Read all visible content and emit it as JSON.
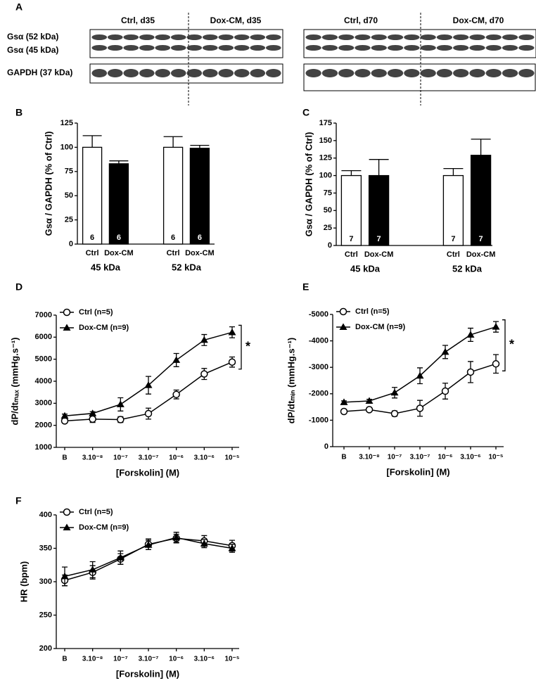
{
  "blot_panel": {
    "label": "A",
    "rows": [
      "Gsα (52 kDa)",
      "Gsα (45 kDa)",
      "GAPDH (37 kDa)"
    ],
    "groups": [
      "Ctrl, d35",
      "Dox-CM, d35",
      "Ctrl, d70",
      "Dox-CM, d70"
    ]
  },
  "chart_data": [
    {
      "type": "bar",
      "panel": "B",
      "ylabel": "Gsα / GAPDH (% of Ctrl)",
      "categories": [
        "45 kDa",
        "52 kDa"
      ],
      "series": [
        {
          "name": "Ctrl",
          "color": "#ffffff",
          "values": [
            100,
            100
          ],
          "errors": [
            12,
            11
          ],
          "n": [
            6,
            6
          ]
        },
        {
          "name": "Dox-CM",
          "color": "#000000",
          "values": [
            83,
            99
          ],
          "errors": [
            3,
            3
          ],
          "n": [
            6,
            6
          ]
        }
      ],
      "ylim": [
        0,
        125
      ],
      "yticks": [
        0,
        25,
        50,
        75,
        100,
        125
      ]
    },
    {
      "type": "bar",
      "panel": "C",
      "ylabel": "Gsα / GAPDH (% of Ctrl)",
      "categories": [
        "45 kDa",
        "52 kDa"
      ],
      "series": [
        {
          "name": "Ctrl",
          "color": "#ffffff",
          "values": [
            100,
            100
          ],
          "errors": [
            7,
            10
          ],
          "n": [
            7,
            7
          ]
        },
        {
          "name": "Dox-CM",
          "color": "#000000",
          "values": [
            100,
            129
          ],
          "errors": [
            23,
            23
          ],
          "n": [
            7,
            7
          ]
        }
      ],
      "ylim": [
        0,
        175
      ],
      "yticks": [
        0,
        25,
        50,
        75,
        100,
        125,
        150,
        175
      ]
    },
    {
      "type": "line",
      "panel": "D",
      "ylabel": "dP/dtₘₐₓ (mmHg.s⁻¹)",
      "xlabel": "[Forskolin] (M)",
      "categories": [
        "B",
        "3.10⁻⁸",
        "10⁻⁷",
        "3.10⁻⁷",
        "10⁻⁶",
        "3.10⁻⁶",
        "10⁻⁵"
      ],
      "series": [
        {
          "name": "Ctrl (n=5)",
          "color": "#000000",
          "marker": "circle",
          "values": [
            2200,
            2280,
            2260,
            2530,
            3400,
            4330,
            4870
          ],
          "errors": [
            100,
            150,
            130,
            250,
            200,
            250,
            230
          ]
        },
        {
          "name": "Dox-CM (n=9)",
          "color": "#000000",
          "marker": "triangle",
          "values": [
            2430,
            2540,
            2950,
            3820,
            4960,
            5870,
            6220
          ],
          "errors": [
            80,
            80,
            300,
            400,
            300,
            250,
            250
          ]
        }
      ],
      "ylim": [
        1000,
        7000
      ],
      "yticks": [
        1000,
        2000,
        3000,
        4000,
        5000,
        6000,
        7000
      ],
      "legend": "upper left",
      "significance": "*"
    },
    {
      "type": "line",
      "panel": "E",
      "ylabel": "dP/dtₘᵢₙ (mmHg.s⁻¹)",
      "xlabel": "[Forskolin] (M)",
      "categories": [
        "B",
        "3.10⁻⁸",
        "10⁻⁷",
        "3.10⁻⁷",
        "10⁻⁶",
        "3.10⁻⁶",
        "10⁻⁵"
      ],
      "series": [
        {
          "name": "Ctrl (n=5)",
          "color": "#000000",
          "marker": "circle",
          "values": [
            -1330,
            -1400,
            -1250,
            -1450,
            -2100,
            -2820,
            -3130
          ],
          "errors": [
            50,
            80,
            100,
            300,
            300,
            400,
            350
          ]
        },
        {
          "name": "Dox-CM (n=9)",
          "color": "#000000",
          "marker": "triangle",
          "values": [
            -1680,
            -1730,
            -2040,
            -2680,
            -3580,
            -4230,
            -4530
          ],
          "errors": [
            50,
            60,
            200,
            300,
            250,
            250,
            200
          ]
        }
      ],
      "ylim": [
        0,
        -5000
      ],
      "yticks": [
        0,
        -1000,
        -2000,
        -3000,
        -4000,
        -5000
      ],
      "legend": "upper left",
      "significance": "*"
    },
    {
      "type": "line",
      "panel": "F",
      "ylabel": "HR (bpm)",
      "xlabel": "[Forskolin] (M)",
      "categories": [
        "B",
        "3.10⁻⁸",
        "10⁻⁷",
        "3.10⁻⁷",
        "10⁻⁶",
        "3.10⁻⁶",
        "10⁻⁵"
      ],
      "series": [
        {
          "name": "Ctrl (n=5)",
          "color": "#000000",
          "marker": "circle",
          "values": [
            302,
            314,
            334,
            356,
            365,
            361,
            354
          ],
          "errors": [
            8,
            10,
            8,
            8,
            6,
            8,
            8
          ]
        },
        {
          "name": "Dox-CM (n=9)",
          "color": "#000000",
          "marker": "triangle",
          "values": [
            308,
            318,
            336,
            355,
            366,
            357,
            350
          ],
          "errors": [
            14,
            12,
            10,
            7,
            8,
            6,
            6
          ]
        }
      ],
      "ylim": [
        200,
        400
      ],
      "yticks": [
        200,
        250,
        300,
        350,
        400
      ],
      "legend": "upper left"
    }
  ]
}
